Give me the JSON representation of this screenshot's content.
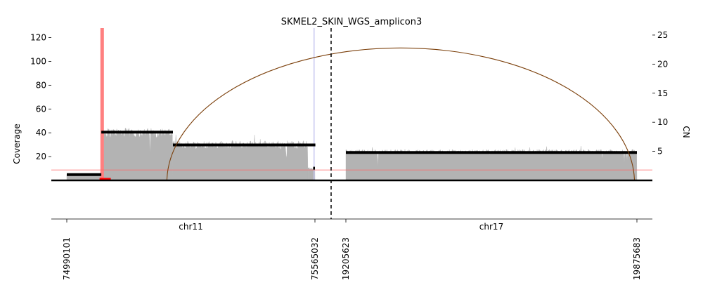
{
  "chart_data": {
    "type": "area",
    "title": "SKMEL2_SKIN_WGS_amplicon3",
    "ylabel_left": "Coverage",
    "ylabel_right": "CN",
    "ylim_left": [
      0,
      128
    ],
    "ylim_right": [
      0,
      26.2
    ],
    "yticks_left": [
      "20",
      "40",
      "60",
      "80",
      "100",
      "120"
    ],
    "yticks_right": [
      "5",
      "10",
      "15",
      "20",
      "25"
    ],
    "grid": false,
    "segments": [
      {
        "chromosome": "chr11",
        "start": 74990101,
        "end": 75565032,
        "start_label": "74990101",
        "end_label": "75565032"
      },
      {
        "chromosome": "chr17",
        "start": 19205623,
        "end": 19875683,
        "start_label": "19205623",
        "end_label": "19875683"
      }
    ],
    "coverage_blocks": [
      {
        "segment": 0,
        "start": 74990101,
        "end": 75070000,
        "coverage": 5,
        "noise": 0.3
      },
      {
        "segment": 0,
        "start": 75070000,
        "end": 75076000,
        "coverage": 30,
        "noise": 0.1
      },
      {
        "segment": 0,
        "start": 75076000,
        "end": 75235000,
        "coverage": 40,
        "noise": 4
      },
      {
        "segment": 0,
        "start": 75235000,
        "end": 75549000,
        "coverage": 30,
        "noise": 3.5
      },
      {
        "segment": 0,
        "start": 75549000,
        "end": 75565032,
        "coverage": 10,
        "noise": 1
      },
      {
        "segment": 1,
        "start": 19205623,
        "end": 19875683,
        "coverage": 24,
        "noise": 2
      }
    ],
    "copy_number_segments": [
      {
        "segment": 0,
        "start": 74990101,
        "end": 75070000,
        "cn": 1.0
      },
      {
        "segment": 0,
        "start": 75070000,
        "end": 75236000,
        "cn": 8.3
      },
      {
        "segment": 0,
        "start": 75236000,
        "end": 75566000,
        "cn": 6.1
      },
      {
        "segment": 0,
        "start": 75561000,
        "end": 75565032,
        "cn": 2.1
      },
      {
        "segment": 1,
        "start": 19205623,
        "end": 19875683,
        "cn": 4.8
      }
    ],
    "cn_reference_line": 1.8,
    "arcs": [
      {
        "from_segment": 0,
        "from_pos": 75222000,
        "to_segment": 1,
        "to_pos": 19870000,
        "color": "#7b3f0a"
      }
    ],
    "breakpoint_marks": [
      {
        "segment": 0,
        "pos": 75072000,
        "color": "#ff8080"
      },
      {
        "segment": 0,
        "pos": 75563000,
        "color": "#c8c8f0"
      }
    ],
    "base_marker": {
      "segment": 0,
      "start": 75066000,
      "end": 75092000,
      "color": "#ff0000"
    },
    "colors": {
      "coverage": "#b3b3b3",
      "cn": "#000000",
      "reference": "#ff6666",
      "breakpoint_divider": "#000000"
    }
  }
}
